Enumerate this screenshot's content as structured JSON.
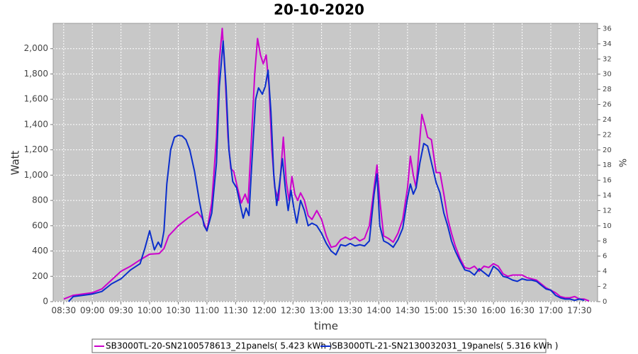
{
  "chart_data": {
    "type": "line",
    "title": "20-10-2020",
    "xlabel": "time",
    "ylabel": "Watt",
    "y2label": "%",
    "xlim": [
      "08:19",
      "17:49"
    ],
    "xticks": [
      "08:30",
      "09:00",
      "09:30",
      "10:00",
      "10:30",
      "11:00",
      "11:30",
      "12:00",
      "12:30",
      "13:00",
      "13:30",
      "14:00",
      "14:30",
      "15:00",
      "15:30",
      "16:00",
      "16:30",
      "17:00",
      "17:30"
    ],
    "ylim": [
      0,
      2200
    ],
    "yticks": [
      0,
      200,
      400,
      600,
      800,
      {
        "value": 1000,
        "label": "1,000"
      },
      {
        "value": 1200,
        "label": "1,200"
      },
      {
        "value": 1400,
        "label": "1,400"
      },
      {
        "value": 1600,
        "label": "1,600"
      },
      {
        "value": 1800,
        "label": "1,800"
      },
      {
        "value": 2000,
        "label": "2,000"
      }
    ],
    "y2lim": [
      0,
      36.7
    ],
    "y2ticks": [
      0,
      2,
      4,
      6,
      8,
      10,
      12,
      14,
      16,
      18,
      20,
      22,
      24,
      26,
      28,
      30,
      32,
      34,
      36
    ],
    "grid": true,
    "legend": "bottom",
    "series": [
      {
        "name": "SB3000TL-20-SN2100578613_21panels( 5.423 kWh )",
        "color": "#cc00cc",
        "x": [
          "08:30",
          "08:40",
          "08:50",
          "09:00",
          "09:10",
          "09:20",
          "09:30",
          "09:40",
          "09:50",
          "10:00",
          "10:10",
          "10:15",
          "10:20",
          "10:30",
          "10:40",
          "10:50",
          "10:55",
          "11:00",
          "11:05",
          "11:10",
          "11:13",
          "11:16",
          "11:19",
          "11:22",
          "11:25",
          "11:28",
          "11:32",
          "11:36",
          "11:40",
          "11:43",
          "11:46",
          "11:50",
          "11:53",
          "11:56",
          "11:59",
          "12:02",
          "12:05",
          "12:08",
          "12:11",
          "12:15",
          "12:18",
          "12:20",
          "12:23",
          "12:26",
          "12:29",
          "12:32",
          "12:35",
          "12:38",
          "12:42",
          "12:46",
          "12:50",
          "12:55",
          "13:00",
          "13:05",
          "13:10",
          "13:15",
          "13:20",
          "13:25",
          "13:30",
          "13:35",
          "13:40",
          "13:45",
          "13:50",
          "13:55",
          "13:58",
          "14:01",
          "14:05",
          "14:10",
          "14:15",
          "14:20",
          "14:25",
          "14:30",
          "14:33",
          "14:36",
          "14:39",
          "14:42",
          "14:45",
          "14:48",
          "14:51",
          "14:55",
          "15:00",
          "15:04",
          "15:08",
          "15:12",
          "15:16",
          "15:20",
          "15:25",
          "15:30",
          "15:35",
          "15:40",
          "15:45",
          "15:50",
          "15:55",
          "16:00",
          "16:05",
          "16:10",
          "16:15",
          "16:20",
          "16:25",
          "16:30",
          "16:35",
          "16:40",
          "16:45",
          "16:50",
          "16:55",
          "17:00",
          "17:05",
          "17:10",
          "17:15",
          "17:20",
          "17:25",
          "17:30",
          "17:35",
          "17:40"
        ],
        "values": [
          20,
          50,
          60,
          70,
          100,
          170,
          240,
          280,
          330,
          375,
          380,
          420,
          520,
          600,
          660,
          710,
          660,
          560,
          780,
          1300,
          1900,
          2160,
          1800,
          1300,
          1050,
          1030,
          900,
          780,
          850,
          780,
          1200,
          1800,
          2080,
          1950,
          1880,
          1950,
          1700,
          1200,
          900,
          800,
          1100,
          1300,
          950,
          800,
          990,
          850,
          800,
          860,
          800,
          680,
          650,
          720,
          650,
          520,
          430,
          440,
          490,
          510,
          490,
          510,
          480,
          500,
          600,
          900,
          1080,
          800,
          520,
          500,
          470,
          540,
          650,
          900,
          1150,
          1000,
          900,
          1200,
          1480,
          1400,
          1300,
          1280,
          1020,
          1020,
          850,
          660,
          540,
          440,
          340,
          270,
          260,
          280,
          240,
          280,
          270,
          300,
          280,
          220,
          200,
          210,
          210,
          210,
          190,
          180,
          170,
          140,
          110,
          90,
          70,
          40,
          30,
          30,
          40,
          20,
          20,
          5
        ]
      },
      {
        "name": "SB3000TL-21-SN2130032031_19panels( 5.316 kWh )",
        "color": "#0a2ecc",
        "x": [
          "08:35",
          "08:40",
          "08:50",
          "09:00",
          "09:10",
          "09:20",
          "09:30",
          "09:40",
          "09:50",
          "09:55",
          "10:00",
          "10:05",
          "10:09",
          "10:12",
          "10:15",
          "10:18",
          "10:22",
          "10:26",
          "10:30",
          "10:34",
          "10:38",
          "10:42",
          "10:47",
          "10:52",
          "10:57",
          "11:00",
          "11:05",
          "11:10",
          "11:13",
          "11:17",
          "11:20",
          "11:23",
          "11:27",
          "11:31",
          "11:35",
          "11:38",
          "11:41",
          "11:44",
          "11:47",
          "11:51",
          "11:54",
          "11:58",
          "12:01",
          "12:04",
          "12:07",
          "12:10",
          "12:13",
          "12:16",
          "12:19",
          "12:22",
          "12:25",
          "12:28",
          "12:31",
          "12:34",
          "12:38",
          "12:42",
          "12:46",
          "12:50",
          "12:55",
          "13:00",
          "13:05",
          "13:10",
          "13:15",
          "13:20",
          "13:25",
          "13:30",
          "13:35",
          "13:40",
          "13:45",
          "13:50",
          "13:55",
          "13:58",
          "14:01",
          "14:05",
          "14:10",
          "14:15",
          "14:20",
          "14:25",
          "14:30",
          "14:33",
          "14:36",
          "14:39",
          "14:43",
          "14:47",
          "14:51",
          "14:55",
          "15:00",
          "15:04",
          "15:08",
          "15:12",
          "15:16",
          "15:20",
          "15:25",
          "15:30",
          "15:35",
          "15:40",
          "15:45",
          "15:50",
          "15:55",
          "16:00",
          "16:05",
          "16:10",
          "16:15",
          "16:20",
          "16:25",
          "16:30",
          "16:35",
          "16:40",
          "16:45",
          "16:50",
          "16:55",
          "17:00",
          "17:05",
          "17:10",
          "17:15",
          "17:20",
          "17:25",
          "17:30",
          "17:35"
        ],
        "values": [
          0,
          40,
          50,
          60,
          80,
          140,
          180,
          250,
          300,
          420,
          560,
          410,
          470,
          430,
          560,
          930,
          1200,
          1300,
          1315,
          1310,
          1280,
          1200,
          1030,
          800,
          600,
          560,
          700,
          1100,
          1700,
          2060,
          1700,
          1200,
          950,
          900,
          760,
          660,
          740,
          680,
          1100,
          1600,
          1690,
          1640,
          1700,
          1830,
          1500,
          1000,
          760,
          930,
          1130,
          900,
          720,
          880,
          740,
          620,
          800,
          720,
          600,
          620,
          600,
          540,
          460,
          400,
          370,
          450,
          440,
          460,
          440,
          450,
          440,
          480,
          850,
          1010,
          600,
          480,
          460,
          430,
          490,
          580,
          820,
          930,
          850,
          900,
          1100,
          1250,
          1230,
          1100,
          940,
          860,
          700,
          600,
          480,
          400,
          320,
          250,
          240,
          210,
          260,
          230,
          200,
          280,
          250,
          200,
          190,
          170,
          160,
          180,
          170,
          170,
          160,
          130,
          100,
          90,
          50,
          30,
          20,
          20,
          10,
          20,
          10
        ]
      }
    ]
  }
}
